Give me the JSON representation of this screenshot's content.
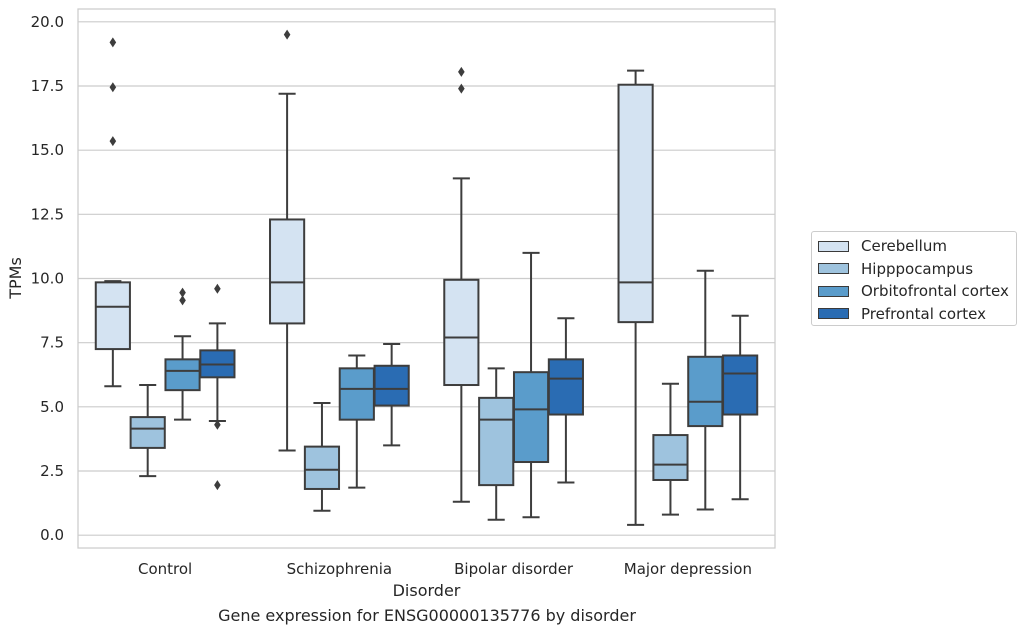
{
  "chart_data": {
    "type": "box",
    "caption": "Gene expression for ENSG00000135776 by disorder",
    "xlabel": "Disorder",
    "ylabel": "TPMs",
    "ylim": [
      -0.5,
      20.5
    ],
    "yticks": [
      "0.0",
      "2.5",
      "5.0",
      "7.5",
      "10.0",
      "12.5",
      "15.0",
      "17.5",
      "20.0"
    ],
    "grid": "horizontal",
    "legend_position": "right",
    "categories": [
      "Control",
      "Schizophrenia",
      "Bipolar disorder",
      "Major depression"
    ],
    "series": [
      {
        "name": "Cerebellum",
        "color": "#d4e3f2",
        "boxes": [
          {
            "whisker_low": 5.8,
            "q1": 7.25,
            "median": 8.9,
            "q3": 9.85,
            "whisker_high": 9.9,
            "outliers": [
              15.35,
              17.45,
              19.2
            ]
          },
          {
            "whisker_low": 3.3,
            "q1": 8.25,
            "median": 9.85,
            "q3": 12.3,
            "whisker_high": 17.2,
            "outliers": [
              19.5
            ]
          },
          {
            "whisker_low": 1.3,
            "q1": 5.85,
            "median": 7.7,
            "q3": 9.95,
            "whisker_high": 13.9,
            "outliers": [
              17.4,
              18.05
            ]
          },
          {
            "whisker_low": 0.4,
            "q1": 8.3,
            "median": 9.85,
            "q3": 17.55,
            "whisker_high": 18.1,
            "outliers": []
          }
        ]
      },
      {
        "name": "Hipppocampus",
        "color": "#9ec3de",
        "boxes": [
          {
            "whisker_low": 2.3,
            "q1": 3.4,
            "median": 4.15,
            "q3": 4.6,
            "whisker_high": 5.85,
            "outliers": []
          },
          {
            "whisker_low": 0.95,
            "q1": 1.8,
            "median": 2.55,
            "q3": 3.45,
            "whisker_high": 5.15,
            "outliers": []
          },
          {
            "whisker_low": 0.6,
            "q1": 1.95,
            "median": 4.5,
            "q3": 5.35,
            "whisker_high": 6.5,
            "outliers": []
          },
          {
            "whisker_low": 0.8,
            "q1": 2.15,
            "median": 2.75,
            "q3": 3.9,
            "whisker_high": 5.9,
            "outliers": []
          }
        ]
      },
      {
        "name": "Orbitofrontal cortex",
        "color": "#5a9ccb",
        "boxes": [
          {
            "whisker_low": 4.5,
            "q1": 5.65,
            "median": 6.4,
            "q3": 6.85,
            "whisker_high": 7.75,
            "outliers": [
              9.15,
              9.45
            ]
          },
          {
            "whisker_low": 1.85,
            "q1": 4.5,
            "median": 5.7,
            "q3": 6.5,
            "whisker_high": 7.0,
            "outliers": []
          },
          {
            "whisker_low": 0.7,
            "q1": 2.85,
            "median": 4.9,
            "q3": 6.35,
            "whisker_high": 11.0,
            "outliers": []
          },
          {
            "whisker_low": 1.0,
            "q1": 4.25,
            "median": 5.2,
            "q3": 6.95,
            "whisker_high": 10.3,
            "outliers": []
          }
        ]
      },
      {
        "name": "Prefrontal cortex",
        "color": "#2a6cb3",
        "boxes": [
          {
            "whisker_low": 4.45,
            "q1": 6.15,
            "median": 6.65,
            "q3": 7.2,
            "whisker_high": 8.25,
            "outliers": [
              1.95,
              4.3,
              9.6
            ]
          },
          {
            "whisker_low": 3.5,
            "q1": 5.05,
            "median": 5.7,
            "q3": 6.6,
            "whisker_high": 7.45,
            "outliers": []
          },
          {
            "whisker_low": 2.05,
            "q1": 4.7,
            "median": 6.1,
            "q3": 6.85,
            "whisker_high": 8.45,
            "outliers": []
          },
          {
            "whisker_low": 1.4,
            "q1": 4.7,
            "median": 6.3,
            "q3": 7.0,
            "whisker_high": 8.55,
            "outliers": []
          }
        ]
      }
    ]
  }
}
